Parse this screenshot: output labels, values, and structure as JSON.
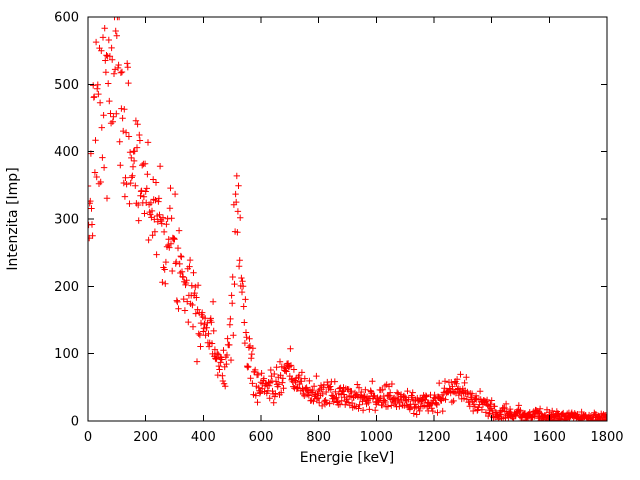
{
  "chart_data": {
    "type": "scatter",
    "title": "",
    "xlabel": "Energie [keV]",
    "ylabel": "Intenzita [Imp]",
    "xlim": [
      0,
      1800
    ],
    "ylim": [
      0,
      600
    ],
    "xticks": [
      0,
      200,
      400,
      600,
      800,
      1000,
      1200,
      1400,
      1600,
      1800
    ],
    "yticks": [
      0,
      100,
      200,
      300,
      400,
      500,
      600
    ],
    "grid": false,
    "legend": "none",
    "marker": "plus",
    "marker_color": "#ff0000",
    "axis_color": "#000000",
    "point_step_keV": 2,
    "profile_mean_spread": [
      [
        0,
        280,
        25
      ],
      [
        15,
        380,
        70
      ],
      [
        40,
        450,
        80
      ],
      [
        70,
        490,
        75
      ],
      [
        100,
        515,
        70
      ],
      [
        125,
        440,
        60
      ],
      [
        150,
        400,
        55
      ],
      [
        175,
        370,
        50
      ],
      [
        200,
        345,
        45
      ],
      [
        230,
        320,
        42
      ],
      [
        260,
        295,
        40
      ],
      [
        300,
        252,
        36
      ],
      [
        340,
        215,
        32
      ],
      [
        380,
        175,
        28
      ],
      [
        410,
        140,
        24
      ],
      [
        440,
        108,
        18
      ],
      [
        465,
        84,
        13
      ],
      [
        480,
        88,
        16
      ],
      [
        492,
        130,
        30
      ],
      [
        502,
        220,
        45
      ],
      [
        511,
        330,
        45
      ],
      [
        520,
        295,
        55
      ],
      [
        530,
        225,
        55
      ],
      [
        542,
        150,
        40
      ],
      [
        556,
        100,
        28
      ],
      [
        575,
        65,
        16
      ],
      [
        600,
        52,
        13
      ],
      [
        625,
        50,
        12
      ],
      [
        650,
        54,
        12
      ],
      [
        672,
        62,
        12
      ],
      [
        690,
        72,
        12
      ],
      [
        705,
        68,
        12
      ],
      [
        725,
        56,
        11
      ],
      [
        750,
        47,
        10
      ],
      [
        790,
        41,
        10
      ],
      [
        850,
        39,
        10
      ],
      [
        950,
        37,
        10
      ],
      [
        1050,
        33,
        9
      ],
      [
        1120,
        28,
        8
      ],
      [
        1170,
        26,
        8
      ],
      [
        1220,
        32,
        9
      ],
      [
        1255,
        45,
        10
      ],
      [
        1280,
        50,
        10
      ],
      [
        1310,
        40,
        9
      ],
      [
        1350,
        26,
        8
      ],
      [
        1400,
        17,
        7
      ],
      [
        1460,
        12,
        6
      ],
      [
        1530,
        9,
        5
      ],
      [
        1620,
        7,
        4
      ],
      [
        1720,
        5,
        3
      ],
      [
        1800,
        5,
        3
      ]
    ],
    "annotated_peaks_keV": [
      511,
      690,
      1275
    ]
  }
}
